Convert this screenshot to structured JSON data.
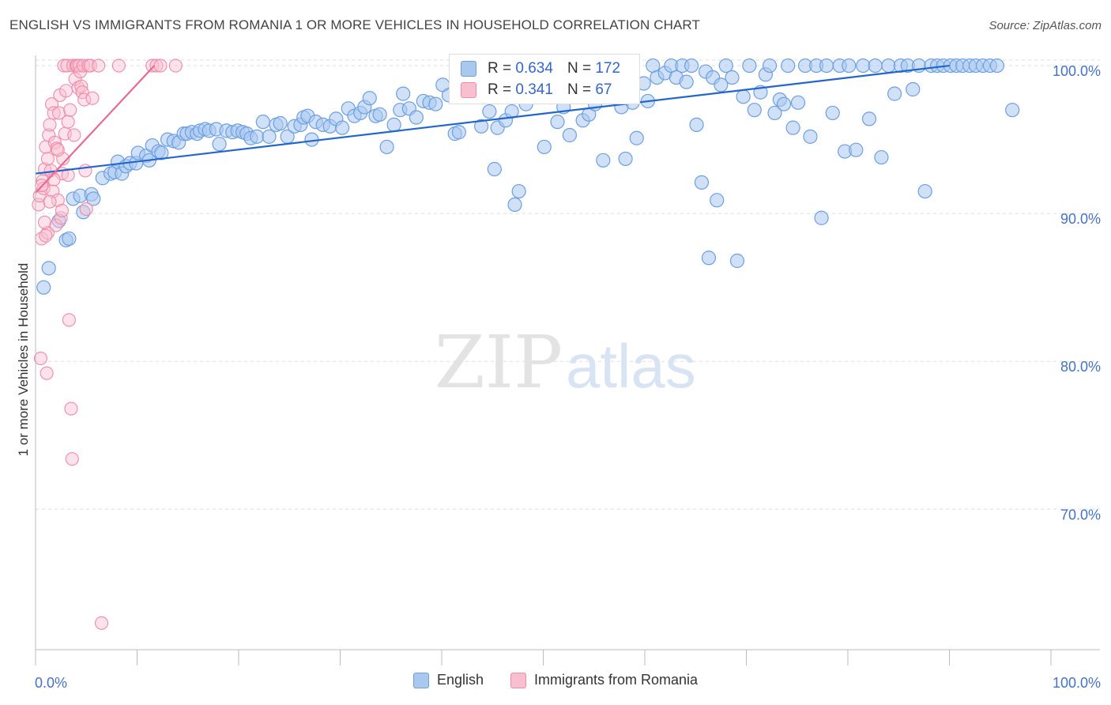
{
  "title": "ENGLISH VS IMMIGRANTS FROM ROMANIA 1 OR MORE VEHICLES IN HOUSEHOLD CORRELATION CHART",
  "source": "Source: ZipAtlas.com",
  "watermark": {
    "part1": "ZIP",
    "part2": "atlas"
  },
  "stats": {
    "r_label": "R =",
    "n_label": "N =",
    "english": {
      "r": "0.634",
      "n": "172"
    },
    "romania": {
      "r": "0.341",
      "n": "67"
    }
  },
  "colors": {
    "english_fill": "#a9c8f0",
    "english_stroke": "#6d9fe0",
    "english_line": "#2266cc",
    "romania_fill": "#f8bfd0",
    "romania_stroke": "#ee8aaa",
    "romania_line": "#e86a92",
    "tick_label": "#4472c4"
  },
  "chart_data": {
    "type": "scatter",
    "title": "ENGLISH VS IMMIGRANTS FROM ROMANIA 1 OR MORE VEHICLES IN HOUSEHOLD CORRELATION CHART",
    "xlabel": "",
    "ylabel": "1 or more Vehicles in Household",
    "xlim": [
      0,
      100
    ],
    "ylim": [
      60.5,
      101.5
    ],
    "x_tick_labels": [
      "0.0%",
      "100.0%"
    ],
    "y_ticks": [
      {
        "value": 100,
        "label": "100.0%"
      },
      {
        "value": 90,
        "label": "90.0%"
      },
      {
        "value": 80,
        "label": "80.0%"
      },
      {
        "value": 70,
        "label": "70.0%"
      }
    ],
    "grid": "horizontal dashed",
    "legend": "bottom-center",
    "series": [
      {
        "name": "English",
        "trend": {
          "x": [
            0,
            90
          ],
          "y": [
            92.7,
            100
          ]
        },
        "points": [
          [
            0.8,
            85
          ],
          [
            1.3,
            86.3
          ],
          [
            2.3,
            89.5
          ],
          [
            3.0,
            88.2
          ],
          [
            3.3,
            88.3
          ],
          [
            3.7,
            91
          ],
          [
            4.4,
            91.2
          ],
          [
            4.7,
            90.1
          ],
          [
            5.5,
            91.3
          ],
          [
            5.7,
            91
          ],
          [
            6.6,
            92.4
          ],
          [
            7.4,
            92.7
          ],
          [
            7.8,
            92.8
          ],
          [
            8.1,
            93.5
          ],
          [
            8.5,
            92.7
          ],
          [
            8.9,
            93.2
          ],
          [
            9.3,
            93.4
          ],
          [
            9.9,
            93.4
          ],
          [
            10.1,
            94.1
          ],
          [
            10.9,
            93.9
          ],
          [
            11.2,
            93.6
          ],
          [
            11.5,
            94.6
          ],
          [
            12.1,
            94.2
          ],
          [
            12.4,
            94.1
          ],
          [
            13.0,
            95
          ],
          [
            13.6,
            94.9
          ],
          [
            14.1,
            94.8
          ],
          [
            14.6,
            95.4
          ],
          [
            14.9,
            95.4
          ],
          [
            15.4,
            95.5
          ],
          [
            15.9,
            95.4
          ],
          [
            16.2,
            95.6
          ],
          [
            16.7,
            95.7
          ],
          [
            17.1,
            95.6
          ],
          [
            17.8,
            95.7
          ],
          [
            18.1,
            94.7
          ],
          [
            18.8,
            95.6
          ],
          [
            19.4,
            95.5
          ],
          [
            19.9,
            95.6
          ],
          [
            20.4,
            95.5
          ],
          [
            20.8,
            95.4
          ],
          [
            21.2,
            95.1
          ],
          [
            21.8,
            95.2
          ],
          [
            22.4,
            96.2
          ],
          [
            23.0,
            95.2
          ],
          [
            23.7,
            96
          ],
          [
            24.1,
            96.1
          ],
          [
            24.8,
            95.2
          ],
          [
            25.5,
            95.9
          ],
          [
            26.1,
            96
          ],
          [
            26.4,
            96.5
          ],
          [
            26.8,
            96.6
          ],
          [
            27.2,
            95
          ],
          [
            27.6,
            96.2
          ],
          [
            28.3,
            96
          ],
          [
            29.0,
            95.9
          ],
          [
            29.6,
            96.4
          ],
          [
            30.2,
            95.8
          ],
          [
            30.8,
            97.1
          ],
          [
            31.4,
            96.6
          ],
          [
            32.0,
            96.8
          ],
          [
            32.4,
            97.2
          ],
          [
            32.9,
            97.8
          ],
          [
            33.5,
            96.6
          ],
          [
            33.9,
            96.7
          ],
          [
            34.6,
            94.5
          ],
          [
            35.3,
            96
          ],
          [
            35.9,
            97
          ],
          [
            36.2,
            98.1
          ],
          [
            36.8,
            97.1
          ],
          [
            37.5,
            96.5
          ],
          [
            38.2,
            97.6
          ],
          [
            38.8,
            97.5
          ],
          [
            39.4,
            97.4
          ],
          [
            40.1,
            98.7
          ],
          [
            40.7,
            98
          ],
          [
            41.3,
            95.4
          ],
          [
            41.7,
            95.5
          ],
          [
            42.0,
            98.4
          ],
          [
            43.2,
            98.2
          ],
          [
            43.9,
            95.9
          ],
          [
            44.7,
            96.9
          ],
          [
            45.2,
            93
          ],
          [
            45.5,
            95.8
          ],
          [
            46.3,
            96.3
          ],
          [
            46.9,
            96.9
          ],
          [
            47.2,
            90.6
          ],
          [
            47.6,
            91.5
          ],
          [
            48.3,
            97.4
          ],
          [
            49.0,
            97.9
          ],
          [
            49.6,
            98.1
          ],
          [
            50.1,
            94.5
          ],
          [
            50.7,
            98.6
          ],
          [
            51.4,
            96.2
          ],
          [
            52.0,
            97.2
          ],
          [
            52.6,
            95.3
          ],
          [
            53.2,
            99.1
          ],
          [
            53.9,
            96.3
          ],
          [
            54.5,
            96.7
          ],
          [
            55.1,
            97.4
          ],
          [
            55.9,
            93.6
          ],
          [
            56.5,
            98.5
          ],
          [
            57.1,
            98.7
          ],
          [
            57.7,
            97.2
          ],
          [
            58.1,
            93.7
          ],
          [
            58.8,
            97.5
          ],
          [
            59.2,
            95.1
          ],
          [
            59.9,
            98.8
          ],
          [
            60.3,
            97.6
          ],
          [
            60.8,
            100
          ],
          [
            61.2,
            99.2
          ],
          [
            62.0,
            99.5
          ],
          [
            62.6,
            100
          ],
          [
            63.1,
            99.2
          ],
          [
            63.7,
            100
          ],
          [
            64.1,
            98.9
          ],
          [
            64.6,
            100
          ],
          [
            65.1,
            96
          ],
          [
            65.6,
            92.1
          ],
          [
            66.0,
            99.6
          ],
          [
            66.3,
            87
          ],
          [
            66.7,
            99.2
          ],
          [
            67.1,
            90.9
          ],
          [
            67.5,
            98.7
          ],
          [
            68.0,
            100
          ],
          [
            68.6,
            99.2
          ],
          [
            69.1,
            86.8
          ],
          [
            69.7,
            97.9
          ],
          [
            70.3,
            100
          ],
          [
            70.8,
            97
          ],
          [
            71.4,
            98.2
          ],
          [
            71.9,
            99.4
          ],
          [
            72.3,
            100
          ],
          [
            72.8,
            96.8
          ],
          [
            73.3,
            97.7
          ],
          [
            73.7,
            97.4
          ],
          [
            74.1,
            100
          ],
          [
            74.6,
            95.8
          ],
          [
            75.1,
            97.5
          ],
          [
            75.8,
            100
          ],
          [
            76.3,
            95.2
          ],
          [
            76.9,
            100
          ],
          [
            77.4,
            89.7
          ],
          [
            77.9,
            100
          ],
          [
            78.5,
            96.8
          ],
          [
            79.2,
            100
          ],
          [
            79.7,
            94.2
          ],
          [
            80.1,
            100
          ],
          [
            80.8,
            94.3
          ],
          [
            81.5,
            100
          ],
          [
            82.1,
            96.4
          ],
          [
            82.7,
            100
          ],
          [
            83.3,
            93.8
          ],
          [
            84.0,
            100
          ],
          [
            84.6,
            98.1
          ],
          [
            85.2,
            100
          ],
          [
            85.9,
            100
          ],
          [
            86.4,
            98.4
          ],
          [
            87.0,
            100
          ],
          [
            87.6,
            91.5
          ],
          [
            88.2,
            100
          ],
          [
            88.8,
            100
          ],
          [
            89.4,
            100
          ],
          [
            90.1,
            100
          ],
          [
            90.7,
            100
          ],
          [
            91.3,
            100
          ],
          [
            92.0,
            100
          ],
          [
            92.6,
            100
          ],
          [
            93.3,
            100
          ],
          [
            94.0,
            100
          ],
          [
            94.7,
            100
          ],
          [
            96.2,
            97
          ]
        ]
      },
      {
        "name": "Immigrants from Romania",
        "trend": {
          "x": [
            0,
            11.7
          ],
          "y": [
            91.4,
            100
          ]
        },
        "points": [
          [
            0.3,
            90.6
          ],
          [
            0.4,
            91.2
          ],
          [
            0.5,
            80.2
          ],
          [
            0.6,
            88.3
          ],
          [
            0.7,
            92.2
          ],
          [
            0.8,
            91.7
          ],
          [
            0.9,
            93
          ],
          [
            1.0,
            94.5
          ],
          [
            1.1,
            79.2
          ],
          [
            1.2,
            88.7
          ],
          [
            1.3,
            95.3
          ],
          [
            1.4,
            96
          ],
          [
            1.5,
            92.9
          ],
          [
            1.6,
            97.4
          ],
          [
            1.7,
            91.5
          ],
          [
            1.8,
            96.8
          ],
          [
            1.9,
            94.8
          ],
          [
            2.0,
            89.2
          ],
          [
            2.1,
            94.4
          ],
          [
            2.2,
            90.9
          ],
          [
            2.3,
            96.8
          ],
          [
            2.4,
            98
          ],
          [
            2.5,
            89.7
          ],
          [
            2.6,
            92.7
          ],
          [
            2.7,
            93.7
          ],
          [
            2.8,
            100
          ],
          [
            2.9,
            95.4
          ],
          [
            3.0,
            98.3
          ],
          [
            3.1,
            100
          ],
          [
            3.2,
            96.2
          ],
          [
            3.3,
            82.8
          ],
          [
            3.4,
            97
          ],
          [
            3.5,
            76.8
          ],
          [
            3.6,
            73.4
          ],
          [
            3.7,
            100
          ],
          [
            3.8,
            95.3
          ],
          [
            3.9,
            99.1
          ],
          [
            4.0,
            100
          ],
          [
            4.1,
            100
          ],
          [
            4.2,
            98.5
          ],
          [
            4.3,
            100
          ],
          [
            4.4,
            99.6
          ],
          [
            4.5,
            98.6
          ],
          [
            4.6,
            98.2
          ],
          [
            4.7,
            100
          ],
          [
            4.8,
            97.7
          ],
          [
            4.9,
            92.9
          ],
          [
            5.0,
            90.3
          ],
          [
            5.2,
            100
          ],
          [
            5.4,
            100
          ],
          [
            5.6,
            97.8
          ],
          [
            6.2,
            100
          ],
          [
            6.5,
            62.3
          ],
          [
            8.2,
            100
          ],
          [
            11.5,
            100
          ],
          [
            11.9,
            100
          ],
          [
            12.3,
            100
          ],
          [
            13.8,
            100
          ],
          [
            1.2,
            93.7
          ],
          [
            1.8,
            92.3
          ],
          [
            2.2,
            94.3
          ],
          [
            0.6,
            91.9
          ],
          [
            1.0,
            88.5
          ],
          [
            2.6,
            90.2
          ],
          [
            3.2,
            92.6
          ],
          [
            0.9,
            89.4
          ],
          [
            1.4,
            90.8
          ]
        ]
      }
    ]
  },
  "legend": {
    "english": "English",
    "romania": "Immigrants from Romania"
  }
}
